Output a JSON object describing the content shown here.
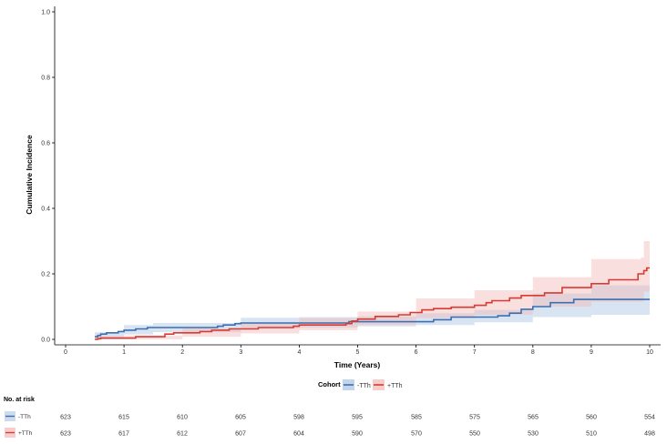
{
  "chart_data": {
    "type": "line",
    "subtype": "cumulative-incidence-step",
    "xlabel": "Time (Years)",
    "ylabel": "Cumulative Incidence",
    "xlim": [
      0,
      10
    ],
    "ylim": [
      0,
      1
    ],
    "x_ticks": [
      "0",
      "1",
      "2",
      "3",
      "4",
      "5",
      "6",
      "7",
      "8",
      "9",
      "10"
    ],
    "y_ticks": [
      "0.0",
      "0.2",
      "0.4",
      "0.6",
      "0.8",
      "1.0"
    ],
    "legend": {
      "title": "Cohort",
      "position": "bottom",
      "entries": [
        "-TTh",
        "+TTh"
      ]
    },
    "series": [
      {
        "name": "-TTh",
        "color": "#3a6fb0",
        "band_color": "#aac3e2",
        "points": [
          [
            0.5,
            0.008
          ],
          [
            0.55,
            0.012
          ],
          [
            0.6,
            0.016
          ],
          [
            0.7,
            0.02
          ],
          [
            0.9,
            0.024
          ],
          [
            1.0,
            0.028
          ],
          [
            1.2,
            0.032
          ],
          [
            1.4,
            0.036
          ],
          [
            2.0,
            0.036
          ],
          [
            2.6,
            0.04
          ],
          [
            2.7,
            0.044
          ],
          [
            2.9,
            0.048
          ],
          [
            3.0,
            0.05
          ],
          [
            4.8,
            0.05
          ],
          [
            4.85,
            0.054
          ],
          [
            5.3,
            0.054
          ],
          [
            6.3,
            0.06
          ],
          [
            6.6,
            0.068
          ],
          [
            7.4,
            0.072
          ],
          [
            7.6,
            0.08
          ],
          [
            7.8,
            0.092
          ],
          [
            8.0,
            0.1
          ],
          [
            8.3,
            0.112
          ],
          [
            8.7,
            0.122
          ],
          [
            10.0,
            0.122
          ]
        ],
        "lower": [
          [
            0.5,
            0.002
          ],
          [
            1.0,
            0.015
          ],
          [
            1.5,
            0.022
          ],
          [
            3.0,
            0.034
          ],
          [
            4.0,
            0.036
          ],
          [
            5.0,
            0.04
          ],
          [
            6.0,
            0.044
          ],
          [
            7.0,
            0.052
          ],
          [
            8.0,
            0.068
          ],
          [
            9.0,
            0.075
          ],
          [
            10.0,
            0.078
          ]
        ],
        "upper": [
          [
            0.5,
            0.022
          ],
          [
            1.0,
            0.044
          ],
          [
            1.5,
            0.05
          ],
          [
            3.0,
            0.066
          ],
          [
            4.0,
            0.068
          ],
          [
            5.0,
            0.07
          ],
          [
            6.0,
            0.08
          ],
          [
            7.0,
            0.09
          ],
          [
            8.0,
            0.14
          ],
          [
            9.0,
            0.165
          ],
          [
            10.0,
            0.17
          ]
        ]
      },
      {
        "name": "+TTh",
        "color": "#d93a32",
        "band_color": "#f2b8b5",
        "points": [
          [
            0.5,
            0.0
          ],
          [
            0.55,
            0.002
          ],
          [
            0.6,
            0.004
          ],
          [
            1.0,
            0.004
          ],
          [
            1.2,
            0.008
          ],
          [
            1.7,
            0.016
          ],
          [
            1.85,
            0.02
          ],
          [
            2.3,
            0.024
          ],
          [
            2.5,
            0.028
          ],
          [
            2.8,
            0.032
          ],
          [
            3.3,
            0.036
          ],
          [
            3.9,
            0.04
          ],
          [
            4.0,
            0.044
          ],
          [
            4.8,
            0.048
          ],
          [
            4.9,
            0.056
          ],
          [
            5.0,
            0.062
          ],
          [
            5.3,
            0.07
          ],
          [
            5.7,
            0.075
          ],
          [
            5.9,
            0.082
          ],
          [
            6.1,
            0.09
          ],
          [
            6.3,
            0.094
          ],
          [
            6.6,
            0.098
          ],
          [
            7.0,
            0.104
          ],
          [
            7.2,
            0.112
          ],
          [
            7.3,
            0.118
          ],
          [
            7.6,
            0.126
          ],
          [
            7.8,
            0.134
          ],
          [
            8.2,
            0.142
          ],
          [
            8.5,
            0.158
          ],
          [
            9.0,
            0.17
          ],
          [
            9.3,
            0.182
          ],
          [
            9.8,
            0.2
          ],
          [
            9.9,
            0.21
          ],
          [
            9.95,
            0.218
          ],
          [
            10.0,
            0.218
          ]
        ],
        "lower": [
          [
            0.5,
            0.0
          ],
          [
            1.0,
            0.0
          ],
          [
            2.0,
            0.008
          ],
          [
            3.0,
            0.018
          ],
          [
            4.0,
            0.028
          ],
          [
            5.0,
            0.044
          ],
          [
            6.0,
            0.065
          ],
          [
            7.0,
            0.075
          ],
          [
            8.0,
            0.1
          ],
          [
            9.0,
            0.115
          ],
          [
            9.9,
            0.145
          ],
          [
            10.0,
            0.145
          ]
        ],
        "upper": [
          [
            0.5,
            0.01
          ],
          [
            1.0,
            0.012
          ],
          [
            2.0,
            0.034
          ],
          [
            3.0,
            0.05
          ],
          [
            4.0,
            0.065
          ],
          [
            5.0,
            0.085
          ],
          [
            6.0,
            0.125
          ],
          [
            7.0,
            0.15
          ],
          [
            8.0,
            0.19
          ],
          [
            9.0,
            0.245
          ],
          [
            9.85,
            0.25
          ],
          [
            9.9,
            0.3
          ],
          [
            10.0,
            0.318
          ]
        ]
      }
    ],
    "risk_table": {
      "title": "No. at risk",
      "rows": [
        {
          "label": "-TTh",
          "color": "#3a6fb0",
          "values": [
            "623",
            "615",
            "610",
            "605",
            "598",
            "595",
            "585",
            "575",
            "565",
            "560",
            "554"
          ]
        },
        {
          "label": "+TTh",
          "color": "#d93a32",
          "values": [
            "623",
            "617",
            "612",
            "607",
            "604",
            "590",
            "570",
            "550",
            "530",
            "510",
            "498"
          ]
        }
      ]
    }
  }
}
